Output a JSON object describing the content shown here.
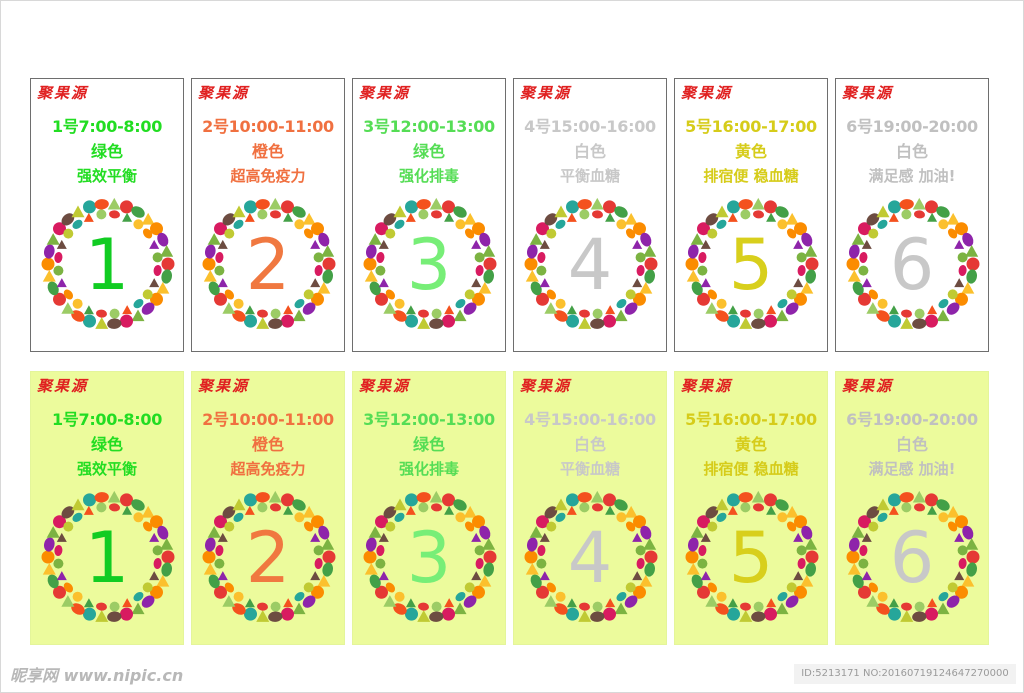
{
  "brand": "聚果源",
  "rows": [
    {
      "background": "#ffffff",
      "cards": [
        {
          "time": "1号7:00-8:00",
          "color_name": "绿色",
          "effect": "强效平衡",
          "numeral": "1",
          "text_color": "#22dd22",
          "numeral_color": "#11cc22"
        },
        {
          "time": "2号10:00-11:00",
          "color_name": "橙色",
          "effect": "超高免疫力",
          "numeral": "2",
          "text_color": "#f07040",
          "numeral_color": "#f07840"
        },
        {
          "time": "3号12:00-13:00",
          "color_name": "绿色",
          "effect": "强化排毒",
          "numeral": "3",
          "text_color": "#55dd55",
          "numeral_color": "#77ee77"
        },
        {
          "time": "4号15:00-16:00",
          "color_name": "白色",
          "effect": "平衡血糖",
          "numeral": "4",
          "text_color": "#c8c8c8",
          "numeral_color": "#c8c8c8"
        },
        {
          "time": "5号16:00-17:00",
          "color_name": "黄色",
          "effect": "排宿便 稳血糖",
          "numeral": "5",
          "text_color": "#d6cc1a",
          "numeral_color": "#d8cf1c"
        },
        {
          "time": "6号19:00-20:00",
          "color_name": "白色",
          "effect": "满足感 加油!",
          "numeral": "6",
          "text_color": "#c0c0c0",
          "numeral_color": "#c8c8c8"
        }
      ]
    },
    {
      "background": "#ecfb9c",
      "cards": [
        {
          "time": "1号7:00-8:00",
          "color_name": "绿色",
          "effect": "强效平衡",
          "numeral": "1",
          "text_color": "#22dd22",
          "numeral_color": "#11cc22"
        },
        {
          "time": "2号10:00-11:00",
          "color_name": "橙色",
          "effect": "超高免疫力",
          "numeral": "2",
          "text_color": "#f07040",
          "numeral_color": "#f07840"
        },
        {
          "time": "3号12:00-13:00",
          "color_name": "绿色",
          "effect": "强化排毒",
          "numeral": "3",
          "text_color": "#55dd55",
          "numeral_color": "#77ee77"
        },
        {
          "time": "4号15:00-16:00",
          "color_name": "白色",
          "effect": "平衡血糖",
          "numeral": "4",
          "text_color": "#c8c8c8",
          "numeral_color": "#c8c8c8"
        },
        {
          "time": "5号16:00-17:00",
          "color_name": "黄色",
          "effect": "排宿便 稳血糖",
          "numeral": "5",
          "text_color": "#d6cc1a",
          "numeral_color": "#d8cf1c"
        },
        {
          "time": "6号19:00-20:00",
          "color_name": "白色",
          "effect": "满足感 加油!",
          "numeral": "6",
          "text_color": "#c0c0c0",
          "numeral_color": "#c8c8c8"
        }
      ]
    }
  ],
  "watermark": {
    "left": "昵享网 www.nipic.cn",
    "right": "ID:5213171 NO:20160719124647270000"
  },
  "fruit_colors": [
    "#e53935",
    "#43a047",
    "#fbc02d",
    "#fb8c00",
    "#8e24aa",
    "#7cb342",
    "#d81b60",
    "#6d4c41",
    "#c0ca33",
    "#26a69a",
    "#f4511e",
    "#9ccc65"
  ]
}
